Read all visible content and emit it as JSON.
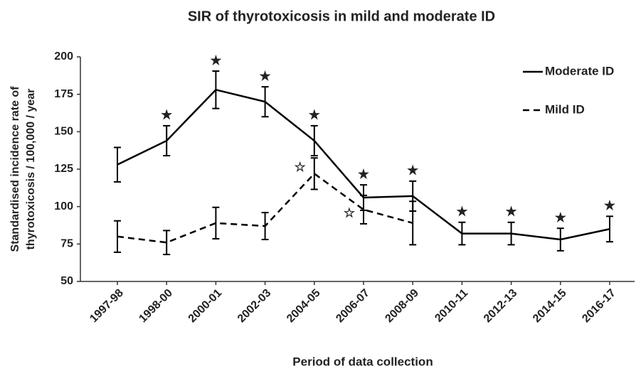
{
  "chart_data": {
    "type": "line",
    "title": "SIR of thyrotoxicosis in mild and moderate ID",
    "xlabel": "Period of data collection",
    "ylabel": [
      "Standardised incidence rate of",
      "thyrotoxicosis / 100,000 / year"
    ],
    "categories": [
      "1997-98",
      "1998-00",
      "2000-01",
      "2002-03",
      "2004-05",
      "2006-07",
      "2008-09",
      "2010-11",
      "2012-13",
      "2014-15",
      "2016-17"
    ],
    "series": [
      {
        "name": "Moderate ID",
        "color": "#000000",
        "line_style": "solid",
        "values": [
          128,
          144,
          178,
          170,
          144,
          106,
          107,
          82,
          82,
          78,
          85
        ],
        "errors": [
          11.5,
          10,
          12.5,
          10,
          10,
          8.5,
          10,
          7.5,
          7.5,
          7.5,
          8.5
        ],
        "markers": [
          null,
          "★",
          "★",
          "★",
          "★",
          "★",
          "★",
          "★",
          "★",
          "★",
          "★"
        ]
      },
      {
        "name": "Mild ID",
        "color": "#000000",
        "line_style": "dashed",
        "values": [
          80,
          76,
          89,
          87,
          122,
          98,
          89,
          null,
          null,
          null,
          null
        ],
        "errors": [
          10.5,
          8,
          10.5,
          9,
          10.5,
          9.5,
          14.5,
          null,
          null,
          null,
          null
        ],
        "markers": [
          null,
          null,
          null,
          null,
          "☆",
          "☆",
          null,
          null,
          null,
          null,
          null
        ]
      }
    ],
    "ylim": [
      50,
      200
    ],
    "yticks": [
      50,
      75,
      100,
      125,
      150,
      175,
      200
    ],
    "legend": "upper right",
    "grid": false
  }
}
